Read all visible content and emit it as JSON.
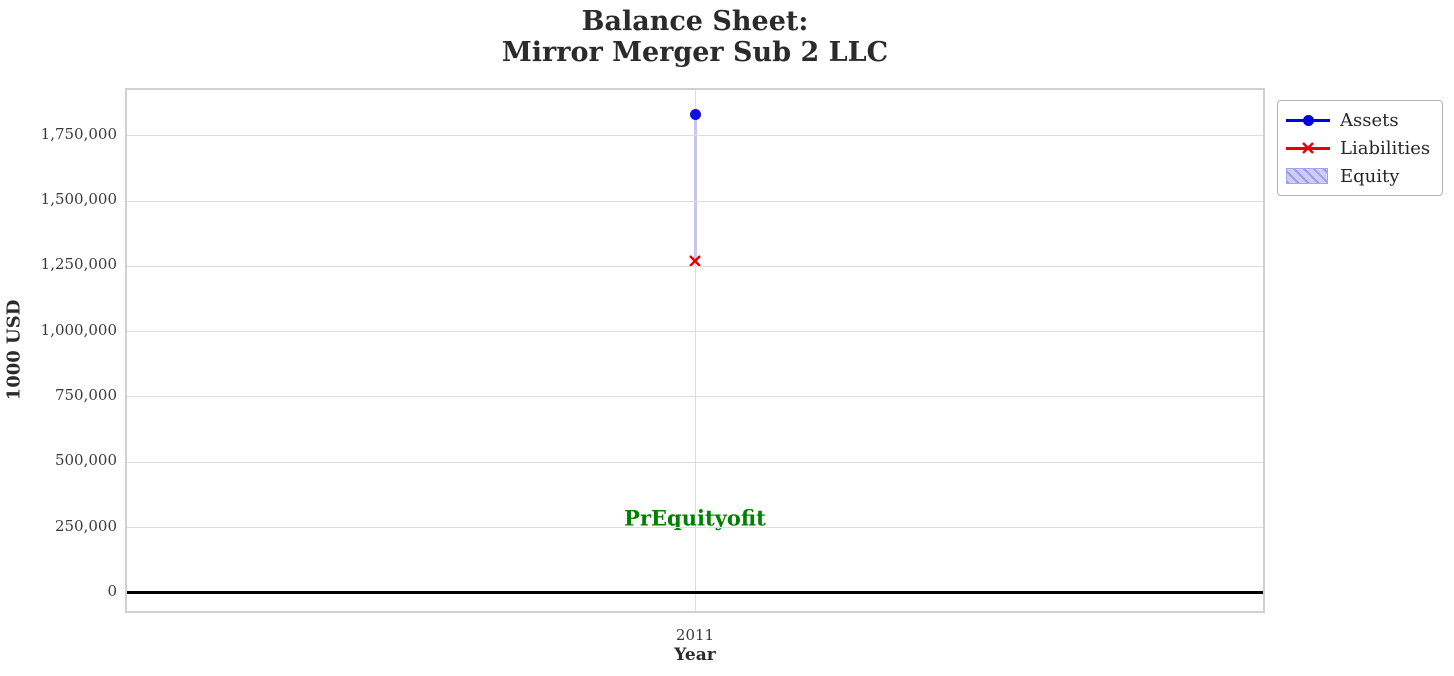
{
  "title": {
    "line1": "Balance Sheet:",
    "line2": "Mirror Merger Sub 2 LLC"
  },
  "chart_data": {
    "type": "line",
    "title": "Balance Sheet:\nMirror Merger Sub 2 LLC",
    "xlabel": "Year",
    "ylabel": "1000 USD",
    "x": [
      2011
    ],
    "xtick_labels": [
      "2011"
    ],
    "series": [
      {
        "name": "Assets",
        "values": [
          1830000
        ],
        "color": "#0000e6",
        "marker": "circle"
      },
      {
        "name": "Liabilities",
        "values": [
          1270000
        ],
        "color": "#e60000",
        "marker": "x"
      },
      {
        "name": "Equity",
        "values": [
          560000
        ],
        "color": "#cdcdf6",
        "style": "hatched-band-between-liabilities-and-assets"
      }
    ],
    "ylim": [
      -85000,
      1925000
    ],
    "yticks": [
      0,
      250000,
      500000,
      750000,
      1000000,
      1250000,
      1500000,
      1750000
    ],
    "ytick_labels": [
      "0",
      "250,000",
      "500,000",
      "750,000",
      "1,000,000",
      "1,250,000",
      "1,500,000",
      "1,750,000"
    ],
    "grid": true,
    "zero_line": true,
    "legend_position": "outside-right-top",
    "annotation": {
      "text": "PrEquityofit",
      "color": "#008000",
      "x": 2011,
      "y": 285000
    }
  },
  "legend": {
    "items": [
      {
        "label": "Assets",
        "swatch": "blue-line-circle-marker"
      },
      {
        "label": "Liabilities",
        "swatch": "red-line-x-marker"
      },
      {
        "label": "Equity",
        "swatch": "lavender-hatched-patch"
      }
    ]
  },
  "colors": {
    "assets": "#0000e6",
    "liabilities": "#e60000",
    "equity_fill": "#cdcdf6",
    "equity_hatch": "#9b9bec",
    "annotation": "#008000",
    "grid": "#dcdcdc",
    "zero_line": "#000000",
    "background": "#ffffff"
  }
}
